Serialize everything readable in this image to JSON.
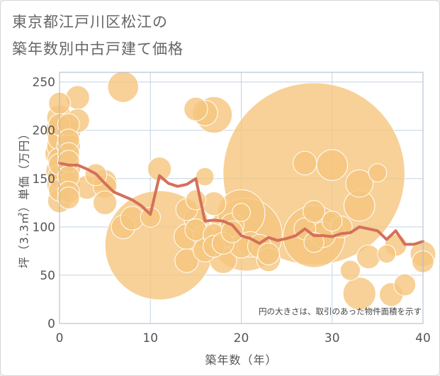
{
  "title": {
    "line1": "東京都江戸川区松江の",
    "line2": "築年数別中古戸建て価格"
  },
  "note": "円の大きさは、取引のあった物件面積を示す",
  "colors": {
    "bubble_fill": "#f5c57e",
    "bubble_stroke": "#ffffff",
    "line": "#d4705a",
    "grid": "#c5d3e3",
    "plot_border": "#aab8c8"
  },
  "chart_data": {
    "type": "scatter",
    "xlabel": "築年数（年）",
    "ylabel": "坪（3.3㎡）単価（万円）",
    "xlim": [
      0,
      40
    ],
    "ylim": [
      0,
      260
    ],
    "xticks": [
      "0",
      "10",
      "20",
      "30",
      "40"
    ],
    "yticks": [
      "0",
      "50",
      "100",
      "150",
      "200",
      "250"
    ],
    "xtick_values": [
      0,
      10,
      20,
      30,
      40
    ],
    "ytick_values": [
      0,
      50,
      100,
      150,
      200,
      250
    ],
    "grid": true,
    "bubbles": [
      {
        "x": 0,
        "y": 228,
        "r": 1.2
      },
      {
        "x": 0,
        "y": 213,
        "r": 1.4
      },
      {
        "x": 0,
        "y": 206,
        "r": 1.2
      },
      {
        "x": 0,
        "y": 200,
        "r": 1.5
      },
      {
        "x": 0,
        "y": 192,
        "r": 1.3
      },
      {
        "x": 0,
        "y": 184,
        "r": 1.4
      },
      {
        "x": 0,
        "y": 176,
        "r": 1.6
      },
      {
        "x": 0,
        "y": 170,
        "r": 1.3
      },
      {
        "x": 0,
        "y": 165,
        "r": 1.2
      },
      {
        "x": 0,
        "y": 158,
        "r": 1.5
      },
      {
        "x": 0,
        "y": 152,
        "r": 1.3
      },
      {
        "x": 0,
        "y": 144,
        "r": 1.4
      },
      {
        "x": 0,
        "y": 138,
        "r": 1.2
      },
      {
        "x": 0,
        "y": 127,
        "r": 1.3
      },
      {
        "x": 1,
        "y": 206,
        "r": 1.2
      },
      {
        "x": 1,
        "y": 198,
        "r": 1.3
      },
      {
        "x": 1,
        "y": 190,
        "r": 1.2
      },
      {
        "x": 1,
        "y": 184,
        "r": 1.3
      },
      {
        "x": 1,
        "y": 176,
        "r": 1.2
      },
      {
        "x": 1,
        "y": 168,
        "r": 1.2
      },
      {
        "x": 1,
        "y": 160,
        "r": 1.3
      },
      {
        "x": 1,
        "y": 152,
        "r": 1.2
      },
      {
        "x": 1,
        "y": 145,
        "r": 1.3
      },
      {
        "x": 1,
        "y": 136,
        "r": 1.2
      },
      {
        "x": 1,
        "y": 130,
        "r": 1.2
      },
      {
        "x": 2,
        "y": 234,
        "r": 1.3
      },
      {
        "x": 2,
        "y": 210,
        "r": 1.3
      },
      {
        "x": 3,
        "y": 141,
        "r": 1.3
      },
      {
        "x": 4,
        "y": 154,
        "r": 1.2
      },
      {
        "x": 5,
        "y": 147,
        "r": 1.3
      },
      {
        "x": 5,
        "y": 142,
        "r": 1.3
      },
      {
        "x": 5,
        "y": 125,
        "r": 1.3
      },
      {
        "x": 7,
        "y": 245,
        "r": 1.7
      },
      {
        "x": 7,
        "y": 100,
        "r": 1.3
      },
      {
        "x": 8,
        "y": 109,
        "r": 1.3
      },
      {
        "x": 10,
        "y": 110,
        "r": 1.1
      },
      {
        "x": 11,
        "y": 81,
        "r": 6.0
      },
      {
        "x": 11,
        "y": 160,
        "r": 1.3
      },
      {
        "x": 14,
        "y": 65,
        "r": 1.3
      },
      {
        "x": 14,
        "y": 90,
        "r": 1.4
      },
      {
        "x": 14,
        "y": 118,
        "r": 1.2
      },
      {
        "x": 15,
        "y": 222,
        "r": 1.3
      },
      {
        "x": 15,
        "y": 128,
        "r": 1.1
      },
      {
        "x": 15,
        "y": 108,
        "r": 1.3
      },
      {
        "x": 15,
        "y": 97,
        "r": 1.2
      },
      {
        "x": 16,
        "y": 218,
        "r": 1.4
      },
      {
        "x": 16,
        "y": 152,
        "r": 1.0
      },
      {
        "x": 16,
        "y": 90,
        "r": 1.3
      },
      {
        "x": 16,
        "y": 76,
        "r": 1.3
      },
      {
        "x": 17,
        "y": 216,
        "r": 2.0
      },
      {
        "x": 17,
        "y": 124,
        "r": 1.3
      },
      {
        "x": 17,
        "y": 92,
        "r": 1.2
      },
      {
        "x": 17,
        "y": 80,
        "r": 1.2
      },
      {
        "x": 18,
        "y": 90,
        "r": 1.3
      },
      {
        "x": 18,
        "y": 83,
        "r": 1.2
      },
      {
        "x": 18,
        "y": 66,
        "r": 1.5
      },
      {
        "x": 19,
        "y": 102,
        "r": 1.3
      },
      {
        "x": 19,
        "y": 95,
        "r": 1.2
      },
      {
        "x": 20,
        "y": 114,
        "r": 2.6
      },
      {
        "x": 20,
        "y": 115,
        "r": 1.0
      },
      {
        "x": 20,
        "y": 80,
        "r": 1.3
      },
      {
        "x": 20.5,
        "y": 92,
        "r": 4.0
      },
      {
        "x": 21,
        "y": 82,
        "r": 1.4
      },
      {
        "x": 22,
        "y": 80,
        "r": 1.3
      },
      {
        "x": 23,
        "y": 72,
        "r": 1.2
      },
      {
        "x": 23,
        "y": 66,
        "r": 1.3
      },
      {
        "x": 27,
        "y": 166,
        "r": 1.3
      },
      {
        "x": 27,
        "y": 98,
        "r": 1.2
      },
      {
        "x": 28,
        "y": 155,
        "r": 10.0
      },
      {
        "x": 28,
        "y": 116,
        "r": 1.2
      },
      {
        "x": 28,
        "y": 90,
        "r": 3.4
      },
      {
        "x": 28,
        "y": 84,
        "r": 1.1
      },
      {
        "x": 29,
        "y": 92,
        "r": 1.4
      },
      {
        "x": 30,
        "y": 164,
        "r": 1.7
      },
      {
        "x": 30,
        "y": 106,
        "r": 1.1
      },
      {
        "x": 31,
        "y": 100,
        "r": 1.2
      },
      {
        "x": 32,
        "y": 55,
        "r": 1.1
      },
      {
        "x": 33,
        "y": 145,
        "r": 1.5
      },
      {
        "x": 33,
        "y": 122,
        "r": 1.7
      },
      {
        "x": 33,
        "y": 31,
        "r": 1.8
      },
      {
        "x": 34,
        "y": 69,
        "r": 1.3
      },
      {
        "x": 35,
        "y": 156,
        "r": 1.0
      },
      {
        "x": 36,
        "y": 72,
        "r": 1.0
      },
      {
        "x": 36.5,
        "y": 30,
        "r": 1.3
      },
      {
        "x": 37,
        "y": 81,
        "r": 1.2
      },
      {
        "x": 38,
        "y": 40,
        "r": 1.2
      },
      {
        "x": 40,
        "y": 72,
        "r": 1.4
      },
      {
        "x": 40,
        "y": 64,
        "r": 1.2
      }
    ],
    "trend_line": {
      "x": [
        0,
        1,
        2,
        3,
        4,
        5,
        6,
        7,
        8,
        9,
        10,
        11,
        12,
        13,
        14,
        15,
        16,
        17,
        18,
        19,
        20,
        21,
        22,
        23,
        24,
        25,
        26,
        27,
        28,
        29,
        30,
        31,
        32,
        33,
        34,
        35,
        36,
        37,
        38,
        39,
        40
      ],
      "y": [
        166,
        164,
        164,
        160,
        155,
        145,
        136,
        132,
        128,
        122,
        113,
        153,
        145,
        142,
        144,
        150,
        106,
        107,
        106,
        102,
        91,
        88,
        83,
        89,
        86,
        88,
        91,
        98,
        91,
        91,
        90,
        93,
        94,
        100,
        98,
        96,
        87,
        96,
        82,
        82,
        85
      ]
    }
  }
}
